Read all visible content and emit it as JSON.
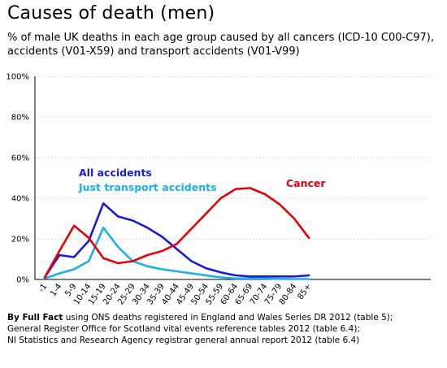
{
  "chart_data": {
    "type": "line",
    "title": "Causes of death (men)",
    "subtitle": "% of male UK deaths in each age group caused by all cancers (ICD-10 C00-C97), accidents (V01-X59) and transport accidents (V01-V99)",
    "xlabel": "",
    "ylabel": "",
    "categories": [
      "-1",
      "1-4",
      "5-9",
      "10-14",
      "15-19",
      "20-24",
      "25-29",
      "30-34",
      "35-39",
      "40-44",
      "45-49",
      "50-54",
      "55-59",
      "60-64",
      "65-69",
      "70-74",
      "75-79",
      "80-84",
      "85+"
    ],
    "ylim": [
      0,
      100
    ],
    "yticks": [
      0,
      20,
      40,
      60,
      80,
      100
    ],
    "ytick_labels": [
      "0%",
      "20%",
      "40%",
      "60%",
      "80%",
      "100%"
    ],
    "grid": true,
    "series": [
      {
        "name": "Cancer",
        "color": "#e8000b",
        "values": [
          1,
          14,
          26.5,
          20.5,
          10.5,
          8,
          9,
          12,
          14,
          17.5,
          25,
          32.5,
          40,
          44.5,
          45,
          42,
          37,
          30,
          20.5
        ]
      },
      {
        "name": "All accidents",
        "color": "#1a1adb",
        "values": [
          1,
          12,
          11,
          19,
          37.5,
          31,
          29,
          25.5,
          21,
          15,
          9,
          5.5,
          3.5,
          2,
          1.5,
          1.5,
          1.5,
          1.5,
          2
        ]
      },
      {
        "name": "Just transport accidents",
        "color": "#1ab0e8",
        "values": [
          0.5,
          3,
          5,
          9,
          25.5,
          16,
          9,
          6.5,
          5,
          4,
          3,
          2,
          1,
          0.5,
          0.5,
          0.5,
          0.3,
          0.2,
          0.2
        ]
      }
    ]
  },
  "source": {
    "lead": "By Full Fact",
    "line1": " using ONS deaths registered in England and Wales Series DR 2012 (table 5);",
    "line2": "General Register Office for Scotland vital events reference tables 2012 (table 6.4);",
    "line3": "NI Statistics and Research Agency registrar general annual report 2012 (table 6.4)"
  }
}
